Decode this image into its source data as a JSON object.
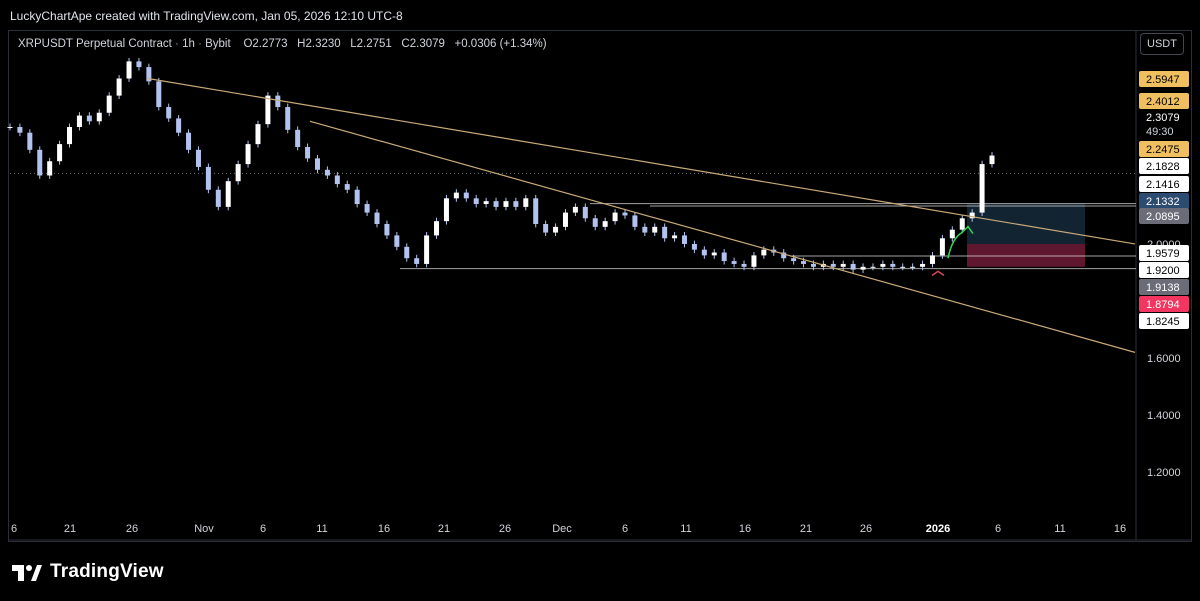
{
  "header": {
    "credit": "LuckyChartApe created with TradingView.com, Jan 05, 2026 12:10 UTC-8"
  },
  "legend": {
    "symbol": "XRPUSDT Perpetual Contract",
    "interval": "1h",
    "exchange": "Bybit",
    "open": "O2.2773",
    "high": "H2.3230",
    "low": "L2.2751",
    "close": "C2.3079",
    "change": "+0.0306 (+1.34%)"
  },
  "currency_button": "USDT",
  "brand": {
    "name": "TradingView"
  },
  "colors": {
    "background": "#000000",
    "candle": "#b2c3ef",
    "trendline": "#c8aa78",
    "hline": "#d9d9d9",
    "grid": "#1a1d24",
    "long_target_zone": "#1e3a52",
    "long_stop_zone": "#6e1b36",
    "green_annotation": "#35d15a",
    "red_annotation": "#e0455b"
  },
  "chart_data": {
    "type": "line",
    "subtype": "candlestick",
    "title": "XRPUSDT Perpetual Contract · 1h · Bybit",
    "xlabel": "",
    "ylabel": "",
    "grid": false,
    "ylim": [
      1.05,
      2.75
    ],
    "x_ticks": [
      "6",
      "21",
      "26",
      "Nov",
      "6",
      "11",
      "16",
      "21",
      "26",
      "Dec",
      "6",
      "11",
      "16",
      "21",
      "26",
      "2026",
      "6",
      "11",
      "16"
    ],
    "y_ticks": [
      "2.0000",
      "1.6000",
      "1.4000",
      "1.2000"
    ],
    "series": [
      {
        "values": [
          2.41,
          2.39,
          2.33,
          2.24,
          2.29,
          2.35,
          2.41,
          2.45,
          2.43,
          2.46,
          2.52,
          2.58,
          2.64,
          2.62,
          2.57,
          2.48,
          2.44,
          2.39,
          2.33,
          2.27,
          2.19,
          2.13,
          2.22,
          2.28,
          2.35,
          2.42,
          2.52,
          2.48,
          2.4,
          2.34,
          2.3,
          2.26,
          2.24,
          2.21,
          2.19,
          2.14,
          2.11,
          2.07,
          2.03,
          1.99,
          1.95,
          1.93,
          2.03,
          2.08,
          2.16,
          2.18,
          2.16,
          2.14,
          2.15,
          2.13,
          2.15,
          2.13,
          2.16,
          2.07,
          2.04,
          2.06,
          2.11,
          2.13,
          2.09,
          2.06,
          2.08,
          2.11,
          2.1,
          2.06,
          2.04,
          2.06,
          2.02,
          2.03,
          2.0,
          1.98,
          1.96,
          1.97,
          1.94,
          1.93,
          1.92,
          1.96,
          1.98,
          1.97,
          1.95,
          1.94,
          1.93,
          1.92,
          1.93,
          1.92,
          1.93,
          1.91,
          1.92,
          1.92,
          1.93,
          1.92,
          1.92,
          1.92,
          1.93,
          1.96,
          2.02,
          2.05,
          2.09,
          2.11,
          2.28,
          2.31
        ]
      }
    ],
    "price_labels": [
      {
        "text": "2.5947",
        "style": "gold",
        "value": 2.5947
      },
      {
        "text": "2.4012",
        "style": "gold",
        "value": 2.4012
      },
      {
        "text": "2.3079",
        "style": "plain",
        "value": 2.3079
      },
      {
        "text": "49:30",
        "style": "plain-dim",
        "value": 2.283
      },
      {
        "text": "2.2475",
        "style": "gold",
        "value": 2.2475
      },
      {
        "text": "2.1828",
        "style": "white",
        "value": 2.1828
      },
      {
        "text": "2.1416",
        "style": "white",
        "value": 2.1416
      },
      {
        "text": "2.1332",
        "style": "blue",
        "value": 2.1332
      },
      {
        "text": "2.0895",
        "style": "gray",
        "value": 2.0895
      },
      {
        "text": "1.9579",
        "style": "white",
        "value": 1.9579
      },
      {
        "text": "1.9200",
        "style": "white",
        "value": 1.92
      },
      {
        "text": "1.9138",
        "style": "gray",
        "value": 1.9138
      },
      {
        "text": "1.8794",
        "style": "red",
        "value": 1.8794
      },
      {
        "text": "1.8245",
        "style": "white",
        "value": 1.8245
      }
    ],
    "horizontal_levels": [
      2.2475,
      2.1416,
      2.1332,
      1.9579,
      1.9138
    ],
    "trendlines": [
      {
        "from": {
          "x": "Oct 28",
          "y": 2.58
        },
        "to": {
          "x": "Jan 13",
          "y": 2.0
        }
      },
      {
        "from": {
          "x": "Nov 10",
          "y": 2.43
        },
        "to": {
          "x": "Jan 13",
          "y": 1.62
        }
      }
    ],
    "position_box": {
      "entry": 2.0,
      "target": 2.14,
      "stop": 1.92
    }
  }
}
